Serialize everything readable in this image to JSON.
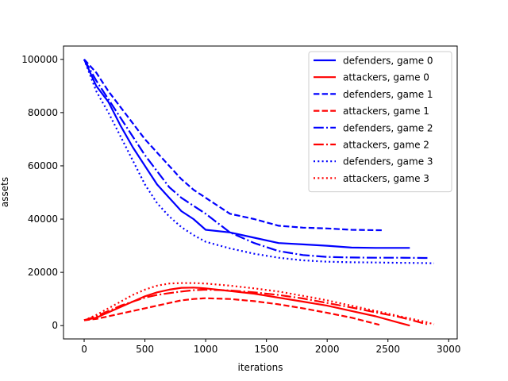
{
  "chart_data": {
    "type": "line",
    "title": "",
    "xlabel": "iterations",
    "ylabel": "assets",
    "xlim": [
      -170,
      3070
    ],
    "ylim": [
      -5000,
      105000
    ],
    "xticks": [
      0,
      500,
      1000,
      1500,
      2000,
      2500,
      3000
    ],
    "yticks": [
      0,
      20000,
      40000,
      60000,
      80000,
      100000
    ],
    "grid": false,
    "legend_position": "top-right",
    "series": [
      {
        "name": "defenders, game 0",
        "color": "#0000ff",
        "style": "solid",
        "x": [
          0,
          100,
          200,
          300,
          400,
          500,
          600,
          700,
          800,
          900,
          1000,
          1200,
          1400,
          1600,
          1800,
          2000,
          2200,
          2400,
          2600,
          2680
        ],
        "y": [
          100000,
          90000,
          84000,
          75000,
          67000,
          60000,
          53000,
          48000,
          43000,
          40000,
          36000,
          35000,
          33000,
          31000,
          30500,
          30000,
          29300,
          29200,
          29200,
          29200
        ]
      },
      {
        "name": "attackers, game 0",
        "color": "#ff0000",
        "style": "solid",
        "x": [
          0,
          100,
          200,
          300,
          400,
          500,
          600,
          700,
          800,
          900,
          1000,
          1200,
          1400,
          1600,
          1800,
          2000,
          2200,
          2400,
          2600,
          2680
        ],
        "y": [
          2000,
          3000,
          5000,
          7000,
          9000,
          11000,
          12500,
          13500,
          14200,
          14300,
          14000,
          13000,
          12000,
          10500,
          9000,
          7500,
          5500,
          3500,
          1000,
          0
        ]
      },
      {
        "name": "defenders, game 1",
        "color": "#0000ff",
        "style": "dashed",
        "x": [
          0,
          100,
          200,
          300,
          400,
          500,
          600,
          700,
          800,
          900,
          1000,
          1200,
          1400,
          1600,
          1800,
          2000,
          2200,
          2460
        ],
        "y": [
          100000,
          95000,
          88000,
          82000,
          76000,
          70000,
          65000,
          60000,
          55000,
          51000,
          48000,
          42000,
          40000,
          37500,
          36800,
          36500,
          36000,
          35800
        ]
      },
      {
        "name": "attackers, game 1",
        "color": "#ff0000",
        "style": "dashed",
        "x": [
          0,
          100,
          200,
          300,
          400,
          500,
          600,
          700,
          800,
          900,
          1000,
          1200,
          1400,
          1600,
          1800,
          2000,
          2200,
          2430
        ],
        "y": [
          2000,
          2500,
          3500,
          4500,
          5500,
          6500,
          7500,
          8500,
          9500,
          10000,
          10300,
          10000,
          9200,
          8000,
          6500,
          4800,
          3000,
          300
        ]
      },
      {
        "name": "defenders, game 2",
        "color": "#0000ff",
        "style": "dashdot",
        "x": [
          0,
          100,
          200,
          300,
          400,
          500,
          600,
          700,
          800,
          900,
          1000,
          1200,
          1400,
          1600,
          1800,
          2000,
          2200,
          2400,
          2600,
          2800,
          2840
        ],
        "y": [
          100000,
          92000,
          85000,
          78000,
          71000,
          64000,
          58000,
          52000,
          48000,
          45000,
          42000,
          35000,
          31000,
          28000,
          26500,
          25800,
          25600,
          25500,
          25500,
          25400,
          25400
        ]
      },
      {
        "name": "attackers, game 2",
        "color": "#ff0000",
        "style": "dashdot",
        "x": [
          0,
          100,
          200,
          300,
          400,
          500,
          600,
          700,
          800,
          900,
          1000,
          1200,
          1400,
          1600,
          1800,
          2000,
          2200,
          2400,
          2600,
          2840
        ],
        "y": [
          2000,
          3500,
          5500,
          7500,
          9000,
          10500,
          11500,
          12200,
          12800,
          13300,
          13500,
          13200,
          12500,
          11500,
          10200,
          8500,
          6800,
          5000,
          3200,
          300
        ]
      },
      {
        "name": "defenders, game 3",
        "color": "#0000ff",
        "style": "dotted",
        "x": [
          0,
          100,
          200,
          300,
          400,
          500,
          600,
          700,
          800,
          900,
          1000,
          1200,
          1400,
          1600,
          1800,
          2000,
          2200,
          2400,
          2600,
          2800,
          2880
        ],
        "y": [
          100000,
          88000,
          80000,
          71000,
          62000,
          53000,
          46000,
          41000,
          37000,
          34000,
          31500,
          29000,
          27000,
          25500,
          24500,
          24000,
          23800,
          23700,
          23600,
          23500,
          23400
        ]
      },
      {
        "name": "attackers, game 3",
        "color": "#ff0000",
        "style": "dotted",
        "x": [
          0,
          100,
          200,
          300,
          400,
          500,
          600,
          700,
          800,
          900,
          1000,
          1200,
          1400,
          1600,
          1800,
          2000,
          2200,
          2400,
          2600,
          2800,
          2880
        ],
        "y": [
          2000,
          4000,
          6500,
          9000,
          11500,
          13500,
          15000,
          15800,
          16000,
          16000,
          15800,
          15000,
          14000,
          12800,
          11200,
          9500,
          7500,
          5500,
          3500,
          1500,
          500
        ]
      }
    ]
  }
}
